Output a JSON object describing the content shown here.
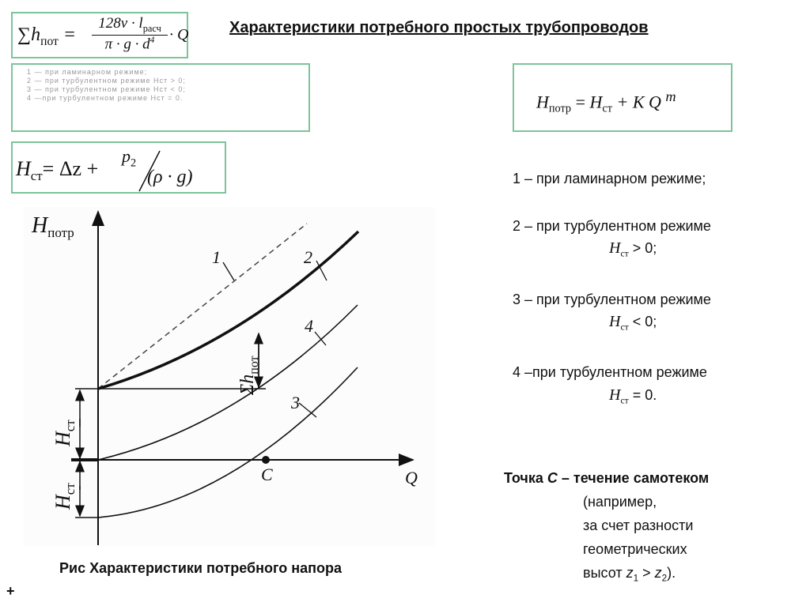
{
  "title": "Характеристики потребного простых трубопроводов",
  "formulas": {
    "losses": {
      "lhs": "∑h",
      "lhs_sub": "пот",
      "num": "128ν · l",
      "num_sub": "расч",
      "den": "π · g · d",
      "den_sup": "4",
      "tail": "· Q"
    },
    "static": {
      "lhs": "H",
      "lhs_sub": "ст",
      "rhs": "= Δz + ",
      "p": "p",
      "p_sub": "2",
      "den": "(ρ · g)"
    },
    "main": {
      "lhs": "H",
      "lhs_sub": "потр",
      "eq": " = ",
      "h": "H",
      "h_sub": "ст",
      "rest": " + K Q ",
      "sup": "m"
    }
  },
  "faded_list": [
    "1 — при ламинарном режиме;",
    "2 — при турбулентном режиме Hст > 0;",
    "3 — при турбулентном режиме Hст < 0;",
    "4 —при турбулентном режиме Hст = 0."
  ],
  "legend": [
    {
      "text": "1 – при ламинарном режиме;"
    },
    {
      "text": "2 – при турбулентном режиме",
      "cond": "> 0;"
    },
    {
      "text": "3 – при турбулентном режиме",
      "cond": "< 0;"
    },
    {
      "text": "4 –при турбулентном режиме",
      "cond": "= 0."
    }
  ],
  "hst": {
    "h": "H",
    "sub": "ст"
  },
  "point_c": {
    "heading_pre": "Точка ",
    "heading_c": "C",
    "heading_post": " – течение самотеком",
    "lines": [
      "(например,",
      "за счет разности",
      "геометрических"
    ],
    "last_pre": "высот  ",
    "z1": "z",
    "z1_sub": "1",
    "gt": " > ",
    "z2": "z",
    "z2_sub": "2",
    "end": ")."
  },
  "figure": {
    "y_label": "H",
    "y_label_sub": "потр",
    "x_label": "Q",
    "curve_labels": [
      "1",
      "2",
      "3",
      "4"
    ],
    "point_label": "C",
    "sum_label": "Σh",
    "sum_label_sub": "пот",
    "hst_label": "H",
    "hst_label_sub": "ст"
  },
  "caption": "Рис Характеристики потребного напора",
  "corner_mark": "+"
}
